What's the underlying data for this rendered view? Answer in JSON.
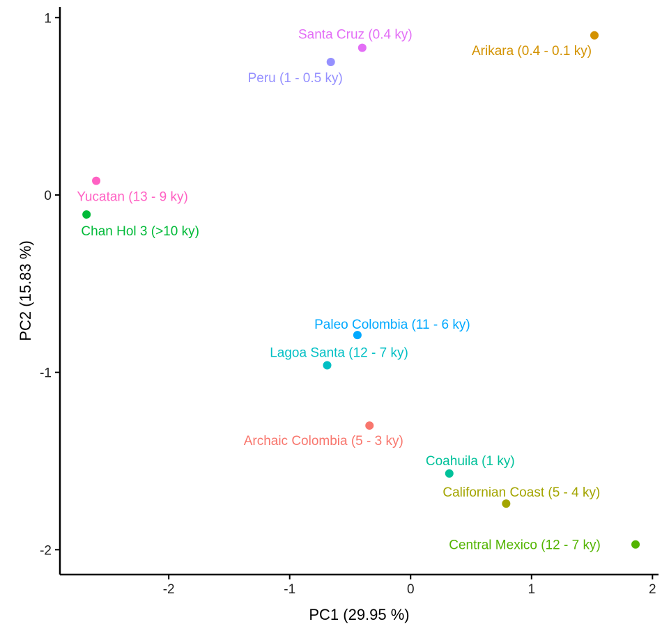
{
  "chart_data": {
    "type": "scatter",
    "xlabel": "PC1 (29.95 %)",
    "ylabel": "PC2 (15.83 %)",
    "xlim": [
      -2.9,
      2.05
    ],
    "ylim": [
      -2.14,
      1.06
    ],
    "xticks": [
      -2,
      -1,
      0,
      1,
      2
    ],
    "yticks": [
      -2,
      -1,
      0,
      1
    ],
    "grid": false,
    "points": [
      {
        "label": "Santa Cruz (0.4 ky)",
        "x": -0.4,
        "y": 0.83,
        "color": "#E36EF6"
      },
      {
        "label": "Arikara (0.4 - 0.1 ky)",
        "x": 1.52,
        "y": 0.9,
        "color": "#D39200"
      },
      {
        "label": "Peru (1 - 0.5 ky)",
        "x": -0.66,
        "y": 0.75,
        "color": "#9590FF"
      },
      {
        "label": "Yucatan (13 - 9 ky)",
        "x": -2.6,
        "y": 0.08,
        "color": "#FF61C3"
      },
      {
        "label": "Chan Hol 3 (>10 ky)",
        "x": -2.68,
        "y": -0.11,
        "color": "#00BA38"
      },
      {
        "label": "Paleo Colombia (11 - 6 ky)",
        "x": -0.44,
        "y": -0.79,
        "color": "#00A9FF"
      },
      {
        "label": "Lagoa Santa (12 - 7 ky)",
        "x": -0.69,
        "y": -0.96,
        "color": "#00BFC4"
      },
      {
        "label": "Archaic Colombia (5 - 3 ky)",
        "x": -0.34,
        "y": -1.3,
        "color": "#F8766D"
      },
      {
        "label": "Coahuila (1 ky)",
        "x": 0.32,
        "y": -1.57,
        "color": "#00C19A"
      },
      {
        "label": "Californian Coast (5 - 4 ky)",
        "x": 0.79,
        "y": -1.74,
        "color": "#A3A500"
      },
      {
        "label": "Central Mexico (12 - 7 ky)",
        "x": 1.86,
        "y": -1.97,
        "color": "#53B400"
      }
    ]
  }
}
